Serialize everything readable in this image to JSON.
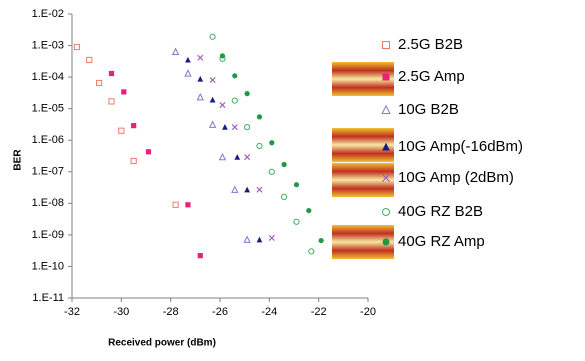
{
  "chart_data": {
    "type": "scatter",
    "xlabel": "Received power (dBm)",
    "ylabel": "BER",
    "xlim": [
      -32,
      -20
    ],
    "xticks": [
      -32,
      -30,
      -28,
      -26,
      -24,
      -22,
      -20
    ],
    "ylim": [
      1e-11,
      0.01
    ],
    "log_y": true,
    "yticks": [
      {
        "value": 1e-11,
        "label": "1.E-11"
      },
      {
        "value": 1e-10,
        "label": "1.E-10"
      },
      {
        "value": 1e-09,
        "label": "1.E-09"
      },
      {
        "value": 1e-08,
        "label": "1.E-08"
      },
      {
        "value": 1e-07,
        "label": "1.E-07"
      },
      {
        "value": 1e-06,
        "label": "1.E-06"
      },
      {
        "value": 1e-05,
        "label": "1.E-05"
      },
      {
        "value": 0.0001,
        "label": "1.E-04"
      },
      {
        "value": 0.001,
        "label": "1.E-03"
      },
      {
        "value": 0.01,
        "label": "1.E-02"
      }
    ],
    "grid": false,
    "legend": "right",
    "series": [
      {
        "name": "2.5G B2B",
        "color": "#f07a6a",
        "marker": "square-open",
        "x": [
          -31.8,
          -31.3,
          -30.9,
          -30.4,
          -30.0,
          -29.5,
          -27.8
        ],
        "values": [
          0.0009,
          0.00035,
          6.5e-05,
          1.7e-05,
          2e-06,
          2.2e-07,
          9e-09
        ]
      },
      {
        "name": "2.5G Amp",
        "color": "#e8207a",
        "marker": "square",
        "x": [
          -30.4,
          -29.9,
          -29.5,
          -28.9,
          -27.3,
          -26.8
        ],
        "values": [
          0.00013,
          3.4e-05,
          2.9e-06,
          4.3e-07,
          9e-09,
          2.2e-10
        ]
      },
      {
        "name": "10G B2B",
        "color": "#7a7ad0",
        "marker": "triangle-open",
        "x": [
          -27.8,
          -27.3,
          -26.8,
          -26.3,
          -25.9,
          -25.4,
          -24.9
        ],
        "values": [
          0.00063,
          0.00013,
          2.3e-05,
          3.1e-06,
          2.9e-07,
          2.7e-08,
          7e-10
        ]
      },
      {
        "name": "10G Amp(-16dBm)",
        "color": "#1a1a80",
        "marker": "triangle",
        "x": [
          -27.3,
          -26.8,
          -26.3,
          -25.8,
          -25.3,
          -24.9,
          -24.4
        ],
        "values": [
          0.00035,
          8.7e-05,
          1.9e-05,
          2.6e-06,
          2.9e-07,
          2.7e-08,
          7e-10
        ]
      },
      {
        "name": "10G Amp (2dBm)",
        "color": "#a060c0",
        "marker": "cross",
        "x": [
          -26.8,
          -26.3,
          -25.9,
          -25.4,
          -24.9,
          -24.4,
          -23.9
        ],
        "values": [
          0.00041,
          8.1e-05,
          1.3e-05,
          2.6e-06,
          2.9e-07,
          2.7e-08,
          8e-10
        ]
      },
      {
        "name": "40G RZ B2B",
        "color": "#40b060",
        "marker": "circle-open",
        "x": [
          -26.3,
          -25.9,
          -25.4,
          -24.9,
          -24.4,
          -23.9,
          -23.4,
          -22.9,
          -22.3
        ],
        "values": [
          0.0019,
          0.00038,
          1.8e-05,
          2.6e-06,
          6.6e-07,
          1e-07,
          1.6e-08,
          2.6e-09,
          3e-10
        ]
      },
      {
        "name": "40G RZ Amp",
        "color": "#1f9a40",
        "marker": "circle",
        "x": [
          -25.9,
          -25.4,
          -24.9,
          -24.4,
          -23.9,
          -23.4,
          -22.9,
          -22.4,
          -21.9
        ],
        "values": [
          0.00047,
          0.00011,
          3e-05,
          5.5e-06,
          8.3e-07,
          1.7e-07,
          3.9e-08,
          5.9e-09,
          6.6e-10
        ]
      }
    ]
  }
}
